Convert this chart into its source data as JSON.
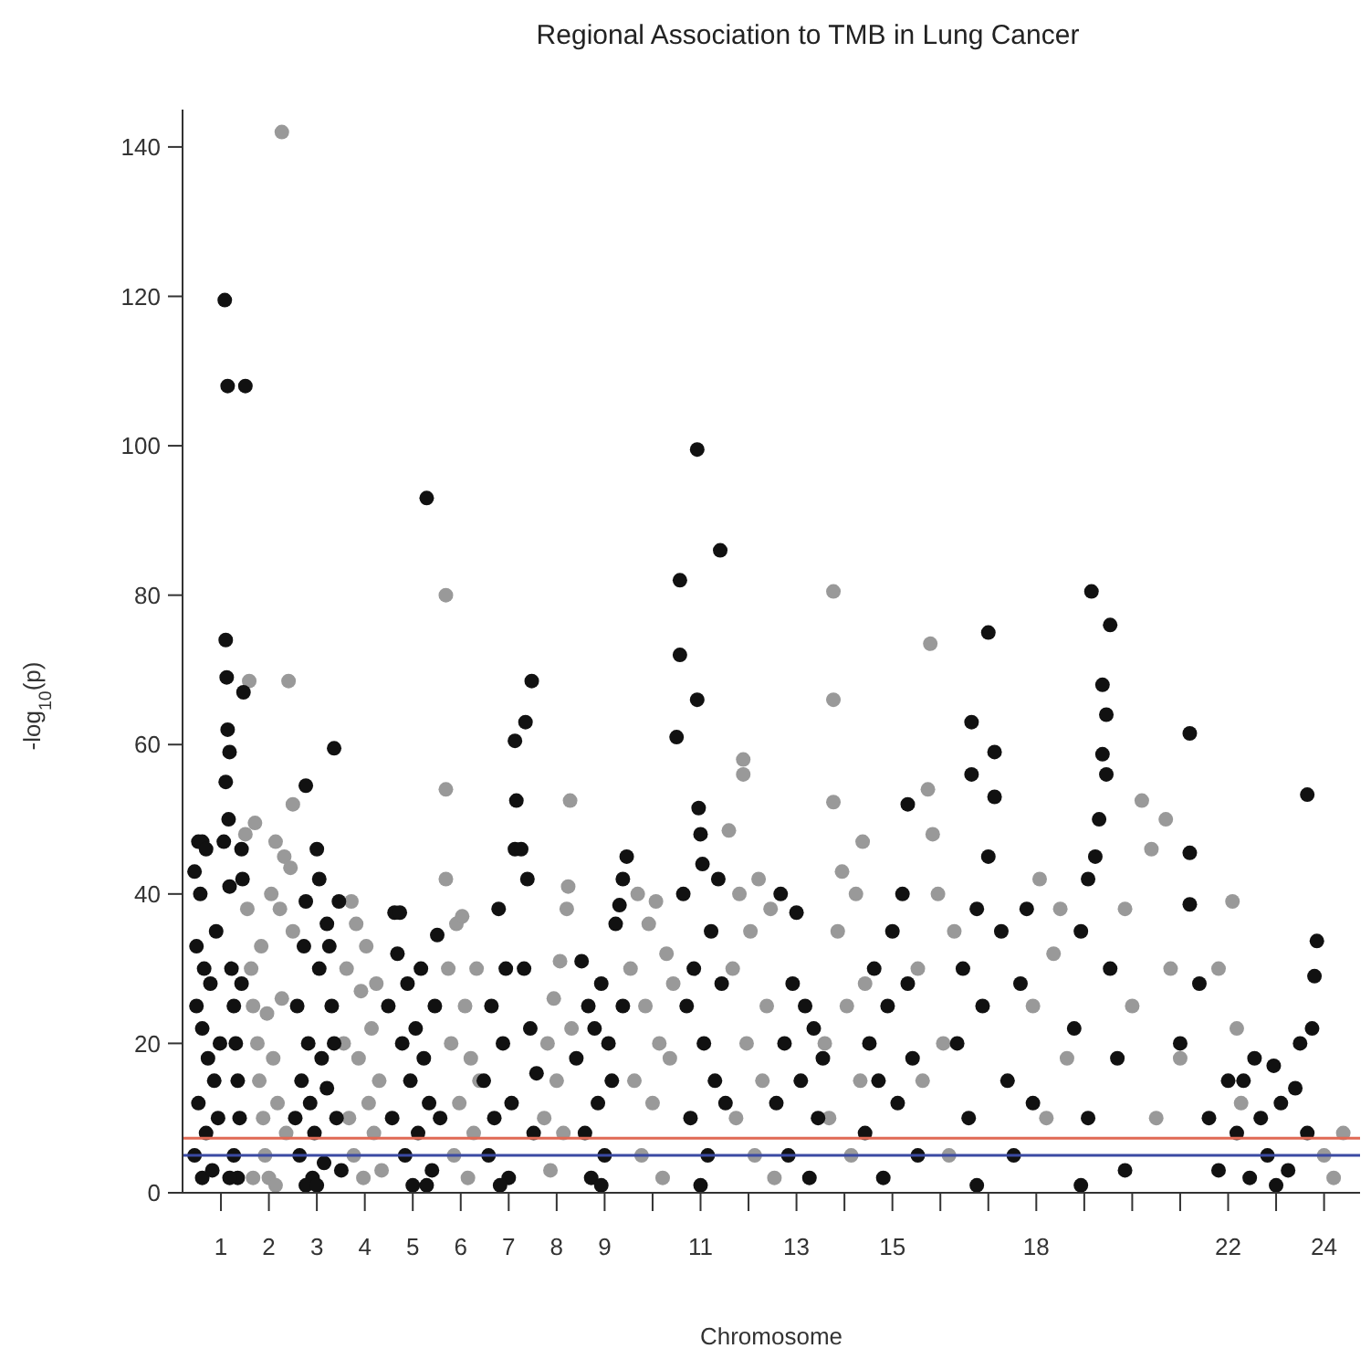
{
  "chart_data": {
    "type": "scatter",
    "title": "Regional Association to TMB in Lung Cancer",
    "xlabel": "Chromosome",
    "ylabel": "-log$_{10}$(p)",
    "xlim": [
      0.2,
      24.75
    ],
    "ylim": [
      0,
      145
    ],
    "xticks": [
      1,
      2,
      3,
      4,
      5,
      6,
      7,
      8,
      9,
      {
        "value": 10,
        "label": null
      },
      11,
      {
        "value": 12,
        "label": null
      },
      13,
      {
        "value": 14,
        "label": null
      },
      15,
      {
        "value": 16,
        "label": null
      },
      {
        "value": 17,
        "label": null
      },
      18,
      {
        "value": 19,
        "label": null
      },
      {
        "value": 20,
        "label": null
      },
      {
        "value": 21,
        "label": null
      },
      22,
      {
        "value": 23,
        "label": null
      },
      24
    ],
    "yticks": [
      0,
      20,
      40,
      60,
      80,
      100,
      120,
      140
    ],
    "marker": "circle",
    "ref_lines": [
      {
        "axis": "y",
        "value": 7.3,
        "color": "#e06a55"
      },
      {
        "axis": "y",
        "value": 5,
        "color": "#3b4aa3"
      }
    ],
    "series": [
      {
        "color": "#999999",
        "x": [
          1.51,
          1.55,
          1.59,
          1.63,
          1.67,
          1.71,
          1.76,
          1.8,
          1.84,
          1.88,
          1.92,
          1.96,
          2,
          2.05,
          2.09,
          2.14,
          2.18,
          2.23,
          2.27,
          2.27,
          2.32,
          2.36,
          2.41,
          2.45,
          2.5,
          2.5,
          1.67,
          2.14,
          3.56,
          3.62,
          3.67,
          3.72,
          3.77,
          3.82,
          3.87,
          3.92,
          3.97,
          4.03,
          4.08,
          4.14,
          4.19,
          4.24,
          4.3,
          4.35,
          5.69,
          5.69,
          5.69,
          5.74,
          5.8,
          5.86,
          5.91,
          5.97,
          6.03,
          6.09,
          6.15,
          6.21,
          6.27,
          6.33,
          6.39,
          7.74,
          7.81,
          7.87,
          7.94,
          8,
          8.07,
          8.14,
          8.21,
          8.24,
          8.28,
          8.31,
          9.54,
          9.62,
          9.69,
          9.77,
          9.85,
          9.92,
          10,
          10.07,
          10.14,
          10.21,
          10.29,
          10.36,
          10.43,
          11.59,
          11.67,
          11.74,
          11.81,
          11.89,
          11.89,
          11.96,
          12.04,
          12.13,
          12.21,
          12.29,
          12.38,
          12.46,
          12.54,
          13.59,
          13.68,
          13.77,
          13.77,
          13.77,
          13.86,
          13.95,
          14.05,
          14.14,
          14.24,
          14.33,
          14.38,
          14.43,
          15.53,
          15.63,
          15.74,
          15.79,
          15.84,
          15.95,
          16.06,
          16.18,
          16.29,
          17.93,
          18.07,
          18.21,
          18.36,
          18.5,
          18.64,
          19.85,
          20,
          20.2,
          20.4,
          20.5,
          20.7,
          20.8,
          21,
          21.8,
          22.09,
          22.18,
          22.27,
          24,
          24.2,
          24.4
        ],
        "values": [
          48,
          38,
          68.5,
          30,
          25,
          49.5,
          20,
          15,
          33,
          10,
          5,
          24,
          2,
          40,
          18,
          47,
          12,
          38,
          142,
          26,
          45,
          8,
          68.5,
          43.5,
          52,
          35,
          2,
          1,
          20,
          30,
          10,
          39,
          5,
          36,
          18,
          27,
          2,
          33,
          12,
          22,
          8,
          28,
          15,
          3,
          80,
          54,
          42,
          30,
          20,
          5,
          36,
          12,
          37,
          25,
          2,
          18,
          8,
          30,
          15,
          10,
          20,
          3,
          26,
          15,
          31,
          8,
          38,
          41,
          52.5,
          22,
          30,
          15,
          40,
          5,
          25,
          36,
          12,
          39,
          20,
          2,
          32,
          18,
          28,
          48.5,
          30,
          10,
          40,
          58,
          56,
          20,
          35,
          5,
          42,
          15,
          25,
          38,
          2,
          20,
          10,
          80.5,
          66,
          52.3,
          35,
          43,
          25,
          5,
          40,
          15,
          47,
          28,
          30,
          15,
          54,
          73.5,
          48,
          40,
          20,
          5,
          35,
          25,
          42,
          10,
          32,
          38,
          18,
          38,
          25,
          52.5,
          46,
          10,
          50,
          30,
          18,
          30,
          39,
          22,
          12,
          5,
          2,
          8
        ]
      },
      {
        "color": "#111111",
        "x": [
          0.45,
          0.53,
          0.61,
          0.69,
          0.57,
          0.49,
          0.65,
          0.78,
          0.49,
          0.61,
          0.73,
          0.86,
          0.53,
          0.69,
          0.45,
          0.61,
          0.82,
          0.94,
          0.98,
          0.9,
          1.06,
          1.1,
          1.14,
          1.12,
          1.1,
          1.14,
          1.08,
          1.18,
          1.16,
          1.18,
          1.22,
          1.27,
          1.31,
          1.35,
          1.39,
          1.27,
          1.35,
          1.43,
          1.45,
          1.43,
          1.47,
          1.51,
          1.18,
          2.55,
          2.59,
          2.64,
          2.68,
          2.73,
          2.77,
          2.77,
          2.82,
          2.86,
          2.91,
          2.95,
          3,
          3.05,
          3.05,
          3.1,
          3.15,
          3.21,
          3.26,
          3.31,
          3.36,
          3.36,
          3.41,
          3.46,
          3.51,
          3.21,
          2.77,
          3,
          4.49,
          4.57,
          4.62,
          4.73,
          4.68,
          4.78,
          4.84,
          4.89,
          4.95,
          5,
          5.06,
          5.11,
          5.17,
          5.29,
          5.23,
          5.34,
          5.4,
          5.46,
          5.51,
          5.57,
          5.29,
          6.48,
          6.58,
          6.64,
          6.7,
          6.79,
          6.88,
          6.94,
          7,
          7.06,
          7.13,
          7.16,
          7.13,
          7.26,
          7.32,
          7.35,
          7.48,
          7.39,
          7.45,
          7.52,
          7.58,
          6.82,
          8.41,
          8.52,
          8.59,
          8.66,
          8.72,
          8.79,
          8.86,
          8.93,
          9,
          9.08,
          9.15,
          9.23,
          9.31,
          9.38,
          9.46,
          9.38,
          8.93,
          10.5,
          10.57,
          10.57,
          10.64,
          10.71,
          10.79,
          10.86,
          10.93,
          10.93,
          10.96,
          11,
          11.04,
          11.07,
          11.15,
          11.22,
          11.3,
          11.37,
          11.41,
          11.44,
          11.52,
          11,
          12.58,
          12.67,
          12.75,
          12.83,
          12.92,
          13,
          13.09,
          13.18,
          13.27,
          13.36,
          13.45,
          13.55,
          14.43,
          14.52,
          14.62,
          14.71,
          14.81,
          14.9,
          15,
          15.11,
          15.21,
          15.32,
          15.32,
          15.42,
          15.53,
          16.35,
          16.47,
          16.59,
          16.65,
          16.65,
          16.76,
          16.88,
          17,
          17,
          17.13,
          17.13,
          17.27,
          17.4,
          17.53,
          17.67,
          17.8,
          17.93,
          16.76,
          19.15,
          19.54,
          19.38,
          19.46,
          19.38,
          19.46,
          19.31,
          19.23,
          19.08,
          18.93,
          18.79,
          19.08,
          19.54,
          19.69,
          19.85,
          18.93,
          21,
          21.2,
          21.2,
          21.2,
          21.4,
          21.6,
          21.8,
          22,
          22.18,
          22.32,
          22.45,
          22.55,
          22.68,
          22.82,
          22.95,
          23.1,
          23.25,
          23.4,
          23.5,
          23.65,
          23.75,
          23.8,
          23.85,
          23.65,
          23
        ],
        "values": [
          43,
          47,
          47,
          46,
          40,
          33,
          30,
          28,
          25,
          22,
          18,
          15,
          12,
          8,
          5,
          2,
          3,
          10,
          20,
          35,
          47,
          55,
          62,
          69,
          74,
          108,
          119.5,
          59,
          50,
          41,
          30,
          25,
          20,
          15,
          10,
          5,
          2,
          28,
          42,
          46,
          67,
          108,
          2,
          10,
          25,
          5,
          15,
          33,
          54.5,
          39,
          20,
          12,
          2,
          8,
          46,
          42,
          30,
          18,
          4,
          36,
          33,
          25,
          59.5,
          20,
          10,
          39,
          3,
          14,
          1,
          1,
          25,
          10,
          37.5,
          37.5,
          32,
          20,
          5,
          28,
          15,
          1,
          22,
          8,
          30,
          93,
          18,
          12,
          3,
          25,
          34.5,
          10,
          1,
          15,
          5,
          25,
          10,
          38,
          20,
          30,
          2,
          12,
          46,
          52.5,
          60.5,
          46,
          30,
          63,
          68.5,
          42,
          22,
          8,
          16,
          1,
          18,
          31,
          8,
          25,
          2,
          22,
          12,
          28,
          5,
          20,
          15,
          36,
          38.5,
          42,
          45,
          25,
          1,
          61,
          72,
          82,
          40,
          25,
          10,
          30,
          99.5,
          66,
          51.5,
          48,
          44,
          20,
          5,
          35,
          15,
          42,
          86,
          28,
          12,
          1,
          12,
          40,
          20,
          5,
          28,
          37.5,
          15,
          25,
          2,
          22,
          10,
          18,
          8,
          20,
          30,
          15,
          2,
          25,
          35,
          12,
          40,
          52,
          28,
          18,
          5,
          20,
          30,
          10,
          63,
          56,
          38,
          25,
          75,
          45,
          59,
          53,
          35,
          15,
          5,
          28,
          38,
          12,
          1,
          80.5,
          76,
          68,
          64,
          58.7,
          56,
          50,
          45,
          42,
          35,
          22,
          10,
          30,
          18,
          3,
          1,
          20,
          61.5,
          45.5,
          38.6,
          28,
          10,
          3,
          15,
          8,
          15,
          2,
          18,
          10,
          5,
          17,
          12,
          3,
          14,
          20,
          8,
          22,
          29,
          33.7,
          53.3,
          1
        ]
      }
    ]
  }
}
